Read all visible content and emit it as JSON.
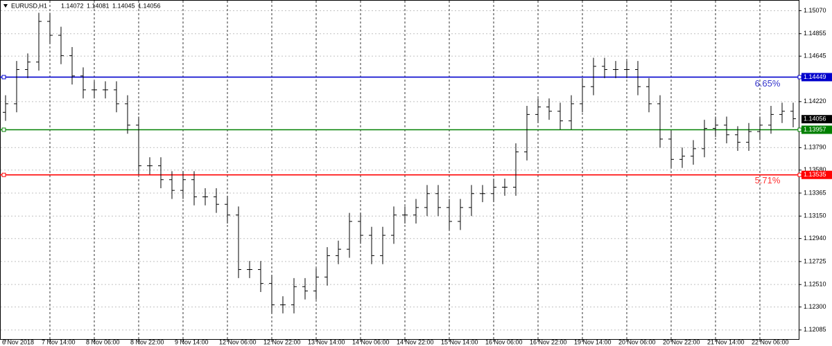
{
  "chart_data": {
    "type": "ohlc",
    "symbol": "EURUSD,H1",
    "header_prices": [
      1.14072,
      1.14081,
      1.14045,
      1.14056
    ],
    "categories": [
      "6 Nov 2018",
      null,
      null,
      null,
      "7 Nov 14:00",
      null,
      null,
      null,
      "8 Nov 06:00",
      null,
      null,
      null,
      "8 Nov 22:00",
      null,
      null,
      null,
      "9 Nov 14:00",
      null,
      null,
      null,
      "12 Nov 06:00",
      null,
      null,
      null,
      "12 Nov 22:00",
      null,
      null,
      null,
      "13 Nov 14:00",
      null,
      null,
      null,
      "14 Nov 06:00",
      null,
      null,
      null,
      "14 Nov 22:00",
      null,
      null,
      null,
      "15 Nov 14:00",
      null,
      null,
      null,
      "16 Nov 06:00",
      null,
      null,
      null,
      "16 Nov 22:00",
      null,
      null,
      null,
      "19 Nov 14:00",
      null,
      null,
      null,
      "20 Nov 06:00",
      null,
      null,
      null,
      "20 Nov 22:00",
      null,
      null,
      null,
      "21 Nov 14:00",
      null,
      null,
      null,
      "22 Nov 06:00",
      null,
      null,
      null
    ],
    "open": [
      1.1412,
      1.142,
      1.1452,
      1.1459,
      1.1497,
      1.1484,
      1.1465,
      1.1446,
      1.1433,
      1.1433,
      1.1433,
      1.142,
      1.14,
      1.1362,
      1.1362,
      1.1349,
      1.1339,
      1.1349,
      1.1333,
      1.1333,
      1.1326,
      1.1316,
      1.1265,
      1.1265,
      1.1252,
      1.1232,
      1.1232,
      1.1249,
      1.1245,
      1.1258,
      1.1278,
      1.1284,
      1.131,
      1.1297,
      1.1278,
      1.1297,
      1.1316,
      1.1316,
      1.1323,
      1.1336,
      1.1323,
      1.131,
      1.1323,
      1.1336,
      1.1336,
      1.1342,
      1.1342,
      1.1375,
      1.141,
      1.1417,
      1.1413,
      1.1404,
      1.142,
      1.1436,
      1.1455,
      1.1452,
      1.1452,
      1.1452,
      1.1436,
      1.142,
      1.1387,
      1.1368,
      1.1371,
      1.1378,
      1.1397,
      1.14,
      1.1391,
      1.1384,
      1.1394,
      1.14,
      1.141,
      1.1413
    ],
    "high": [
      1.1428,
      1.146,
      1.1467,
      1.1505,
      1.1505,
      1.1492,
      1.1473,
      1.1454,
      1.1441,
      1.1441,
      1.1441,
      1.1428,
      1.1408,
      1.137,
      1.137,
      1.1357,
      1.1357,
      1.1357,
      1.1341,
      1.1341,
      1.1334,
      1.1324,
      1.1273,
      1.1273,
      1.126,
      1.124,
      1.1257,
      1.1257,
      1.1266,
      1.1286,
      1.1292,
      1.1318,
      1.1318,
      1.1305,
      1.1305,
      1.1324,
      1.1324,
      1.1331,
      1.1344,
      1.1344,
      1.1331,
      1.1331,
      1.1344,
      1.1344,
      1.135,
      1.135,
      1.1383,
      1.1418,
      1.1425,
      1.1425,
      1.1421,
      1.1428,
      1.1444,
      1.1463,
      1.1463,
      1.146,
      1.146,
      1.146,
      1.1444,
      1.1428,
      1.1395,
      1.1379,
      1.1386,
      1.1405,
      1.1408,
      1.1408,
      1.1399,
      1.1402,
      1.1408,
      1.1418,
      1.1421,
      1.1421
    ],
    "low": [
      1.1404,
      1.1412,
      1.1444,
      1.1451,
      1.1476,
      1.1457,
      1.1438,
      1.1425,
      1.1425,
      1.1425,
      1.1412,
      1.1392,
      1.1354,
      1.1354,
      1.1341,
      1.1331,
      1.1331,
      1.1325,
      1.1325,
      1.1318,
      1.1308,
      1.1257,
      1.1257,
      1.1244,
      1.1224,
      1.1224,
      1.1224,
      1.1237,
      1.1237,
      1.125,
      1.127,
      1.1276,
      1.1289,
      1.127,
      1.127,
      1.1289,
      1.1308,
      1.1308,
      1.1315,
      1.1315,
      1.1302,
      1.1302,
      1.1315,
      1.1328,
      1.1328,
      1.1334,
      1.1334,
      1.1367,
      1.1402,
      1.1405,
      1.1396,
      1.1396,
      1.1412,
      1.1428,
      1.1444,
      1.1444,
      1.1444,
      1.1428,
      1.1412,
      1.1379,
      1.136,
      1.136,
      1.1363,
      1.137,
      1.1389,
      1.1383,
      1.1376,
      1.1376,
      1.1386,
      1.1392,
      1.1402,
      1.1398
    ],
    "close": [
      1.142,
      1.1452,
      1.1459,
      1.1497,
      1.1484,
      1.1465,
      1.1446,
      1.1433,
      1.1433,
      1.1433,
      1.142,
      1.14,
      1.1362,
      1.1362,
      1.1349,
      1.1339,
      1.1349,
      1.1333,
      1.1333,
      1.1326,
      1.1316,
      1.1265,
      1.1265,
      1.1252,
      1.1232,
      1.1232,
      1.1249,
      1.1245,
      1.1258,
      1.1278,
      1.1284,
      1.131,
      1.1297,
      1.1278,
      1.1297,
      1.1316,
      1.1316,
      1.1323,
      1.1336,
      1.1323,
      1.131,
      1.1323,
      1.1336,
      1.1336,
      1.1342,
      1.1342,
      1.1375,
      1.141,
      1.1417,
      1.1413,
      1.1404,
      1.142,
      1.1436,
      1.1455,
      1.1452,
      1.1452,
      1.1452,
      1.1436,
      1.142,
      1.1387,
      1.1368,
      1.1371,
      1.1378,
      1.1397,
      1.14,
      1.1391,
      1.1384,
      1.1394,
      1.14,
      1.141,
      1.1413,
      1.1406
    ],
    "color": "#000000",
    "ylim": [
      1.12,
      1.1517
    ],
    "yticks": [
      {
        "value": 1.1507,
        "label": "1.15070"
      },
      1.14855,
      1.14645,
      {
        "value": 1.1422,
        "label": "1.14220"
      },
      {
        "value": 1.1379,
        "label": "1.13790"
      },
      {
        "value": 1.1358,
        "label": "1.13580"
      },
      1.13365,
      {
        "value": 1.1315,
        "label": "1.13150"
      },
      {
        "value": 1.1294,
        "label": "1.12940"
      },
      1.12725,
      {
        "value": 1.1251,
        "label": "1.12510"
      },
      {
        "value": 1.123,
        "label": "1.12300"
      },
      1.12085
    ],
    "grid": true,
    "levels": [
      {
        "value": 1.14449,
        "color": "#0000cc"
      },
      {
        "value": 1.13957,
        "color": "#008000"
      },
      {
        "value": 1.13535,
        "color": "#ff0000"
      }
    ],
    "last_price": 1.14056,
    "annotations": [
      {
        "text": "6.65%",
        "color": "#3333cc"
      },
      {
        "text": "5.71%",
        "color": "#ff3333"
      }
    ]
  }
}
